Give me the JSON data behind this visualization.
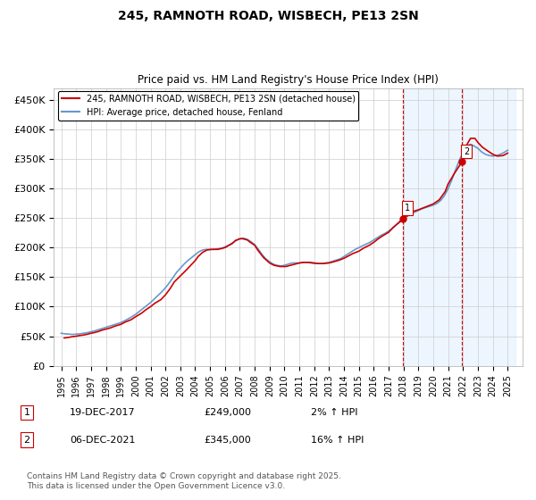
{
  "title": "245, RAMNOTH ROAD, WISBECH, PE13 2SN",
  "subtitle": "Price paid vs. HM Land Registry's House Price Index (HPI)",
  "ylabel_ticks": [
    "£0",
    "£50K",
    "£100K",
    "£150K",
    "£200K",
    "£250K",
    "£300K",
    "£350K",
    "£400K",
    "£450K"
  ],
  "ytick_values": [
    0,
    50000,
    100000,
    150000,
    200000,
    250000,
    300000,
    350000,
    400000,
    450000
  ],
  "ylim": [
    0,
    470000
  ],
  "xlim_start": 1995.0,
  "xlim_end": 2026.0,
  "xtick_years": [
    1995,
    1996,
    1997,
    1998,
    1999,
    2000,
    2001,
    2002,
    2003,
    2004,
    2005,
    2006,
    2007,
    2008,
    2009,
    2010,
    2011,
    2012,
    2013,
    2014,
    2015,
    2016,
    2017,
    2018,
    2019,
    2020,
    2021,
    2022,
    2023,
    2024,
    2025
  ],
  "hpi_color": "#6699cc",
  "price_color": "#cc0000",
  "marker1_x": 2017.96,
  "marker1_y": 249000,
  "marker2_x": 2021.92,
  "marker2_y": 345000,
  "marker1_label": "19-DEC-2017",
  "marker1_price": "£249,000",
  "marker1_hpi": "2% ↑ HPI",
  "marker2_label": "06-DEC-2021",
  "marker2_price": "£345,000",
  "marker2_hpi": "16% ↑ HPI",
  "legend_line1": "245, RAMNOTH ROAD, WISBECH, PE13 2SN (detached house)",
  "legend_line2": "HPI: Average price, detached house, Fenland",
  "footnote": "Contains HM Land Registry data © Crown copyright and database right 2025.\nThis data is licensed under the Open Government Licence v3.0.",
  "hpi_years": [
    1995.0,
    1995.25,
    1995.5,
    1995.75,
    1996.0,
    1996.25,
    1996.5,
    1996.75,
    1997.0,
    1997.25,
    1997.5,
    1997.75,
    1998.0,
    1998.25,
    1998.5,
    1998.75,
    1999.0,
    1999.25,
    1999.5,
    1999.75,
    2000.0,
    2000.25,
    2000.5,
    2000.75,
    2001.0,
    2001.25,
    2001.5,
    2001.75,
    2002.0,
    2002.25,
    2002.5,
    2002.75,
    2003.0,
    2003.25,
    2003.5,
    2003.75,
    2004.0,
    2004.25,
    2004.5,
    2004.75,
    2005.0,
    2005.25,
    2005.5,
    2005.75,
    2006.0,
    2006.25,
    2006.5,
    2006.75,
    2007.0,
    2007.25,
    2007.5,
    2007.75,
    2008.0,
    2008.25,
    2008.5,
    2008.75,
    2009.0,
    2009.25,
    2009.5,
    2009.75,
    2010.0,
    2010.25,
    2010.5,
    2010.75,
    2011.0,
    2011.25,
    2011.5,
    2011.75,
    2012.0,
    2012.25,
    2012.5,
    2012.75,
    2013.0,
    2013.25,
    2013.5,
    2013.75,
    2014.0,
    2014.25,
    2014.5,
    2014.75,
    2015.0,
    2015.25,
    2015.5,
    2015.75,
    2016.0,
    2016.25,
    2016.5,
    2016.75,
    2017.0,
    2017.25,
    2017.5,
    2017.75,
    2018.0,
    2018.25,
    2018.5,
    2018.75,
    2019.0,
    2019.25,
    2019.5,
    2019.75,
    2020.0,
    2020.25,
    2020.5,
    2020.75,
    2021.0,
    2021.25,
    2021.5,
    2021.75,
    2022.0,
    2022.25,
    2022.5,
    2022.75,
    2023.0,
    2023.25,
    2023.5,
    2023.75,
    2024.0,
    2024.25,
    2024.5,
    2024.75,
    2025.0
  ],
  "hpi_values": [
    55000,
    54000,
    53500,
    53000,
    53500,
    54000,
    55000,
    56000,
    57500,
    59000,
    61000,
    63000,
    65000,
    67000,
    69000,
    71000,
    73000,
    76000,
    79500,
    83000,
    87000,
    92000,
    97000,
    102000,
    107000,
    113000,
    119000,
    125000,
    132000,
    140000,
    149000,
    158000,
    165000,
    172000,
    178000,
    183000,
    188000,
    193000,
    196000,
    197000,
    197000,
    197000,
    198000,
    199000,
    201000,
    204000,
    208000,
    212000,
    215000,
    216000,
    214000,
    210000,
    205000,
    197000,
    188000,
    181000,
    176000,
    172000,
    170000,
    169000,
    170000,
    172000,
    174000,
    174000,
    174000,
    175000,
    175000,
    174000,
    173000,
    173000,
    173000,
    174000,
    175000,
    177000,
    179000,
    181000,
    185000,
    189000,
    193000,
    197000,
    200000,
    203000,
    206000,
    209000,
    213000,
    217000,
    221000,
    224000,
    228000,
    233000,
    238000,
    243000,
    248000,
    253000,
    257000,
    260000,
    263000,
    266000,
    268000,
    270000,
    272000,
    275000,
    280000,
    288000,
    300000,
    315000,
    332000,
    348000,
    362000,
    372000,
    375000,
    372000,
    368000,
    362000,
    358000,
    356000,
    355000,
    356000,
    358000,
    361000,
    365000
  ],
  "price_years": [
    1995.2,
    1995.5,
    1995.7,
    1996.0,
    1996.2,
    1996.5,
    1996.7,
    1997.0,
    1997.2,
    1997.5,
    1997.7,
    1998.0,
    1998.3,
    1998.6,
    1999.0,
    1999.3,
    1999.7,
    2000.0,
    2000.4,
    2000.7,
    2001.0,
    2001.3,
    2001.7,
    2002.0,
    2002.3,
    2002.6,
    2003.0,
    2003.4,
    2003.7,
    2004.0,
    2004.2,
    2004.5,
    2004.8,
    2005.1,
    2005.3,
    2005.5,
    2005.7,
    2006.0,
    2006.2,
    2006.5,
    2006.7,
    2007.0,
    2007.2,
    2007.5,
    2007.7,
    2008.0,
    2008.2,
    2008.6,
    2009.0,
    2009.3,
    2009.7,
    2010.1,
    2010.4,
    2010.7,
    2011.0,
    2011.3,
    2011.7,
    2012.0,
    2012.3,
    2012.6,
    2013.0,
    2013.3,
    2013.7,
    2014.0,
    2014.3,
    2014.6,
    2015.0,
    2015.3,
    2015.7,
    2016.0,
    2016.3,
    2016.6,
    2017.0,
    2017.3,
    2017.96,
    2018.3,
    2018.6,
    2019.0,
    2019.3,
    2019.6,
    2020.0,
    2020.4,
    2020.8,
    2021.0,
    2021.4,
    2021.92,
    2022.2,
    2022.5,
    2022.8,
    2023.0,
    2023.3,
    2023.7,
    2024.0,
    2024.3,
    2024.7,
    2025.0
  ],
  "price_values": [
    47000,
    48000,
    49000,
    50000,
    51000,
    52000,
    53000,
    55000,
    56000,
    58000,
    60000,
    62000,
    64000,
    67000,
    70000,
    74000,
    78000,
    83000,
    89000,
    95000,
    100000,
    106000,
    112000,
    120000,
    130000,
    142000,
    152000,
    162000,
    170000,
    178000,
    185000,
    192000,
    196000,
    197000,
    197000,
    197000,
    198000,
    200000,
    203000,
    207000,
    212000,
    215000,
    215000,
    213000,
    209000,
    204000,
    196000,
    183000,
    174000,
    170000,
    168000,
    168000,
    170000,
    172000,
    174000,
    175000,
    175000,
    174000,
    173000,
    173000,
    174000,
    176000,
    179000,
    182000,
    186000,
    190000,
    194000,
    199000,
    204000,
    209000,
    215000,
    220000,
    226000,
    234000,
    249000,
    255000,
    261000,
    264000,
    267000,
    270000,
    274000,
    281000,
    295000,
    308000,
    325000,
    345000,
    372000,
    385000,
    385000,
    378000,
    370000,
    363000,
    358000,
    355000,
    356000,
    360000
  ],
  "bg_color": "#ffffff",
  "grid_color": "#cccccc",
  "shade_color": "#ddeeff",
  "shade_start": 2017.96,
  "shade_end": 2025.5
}
